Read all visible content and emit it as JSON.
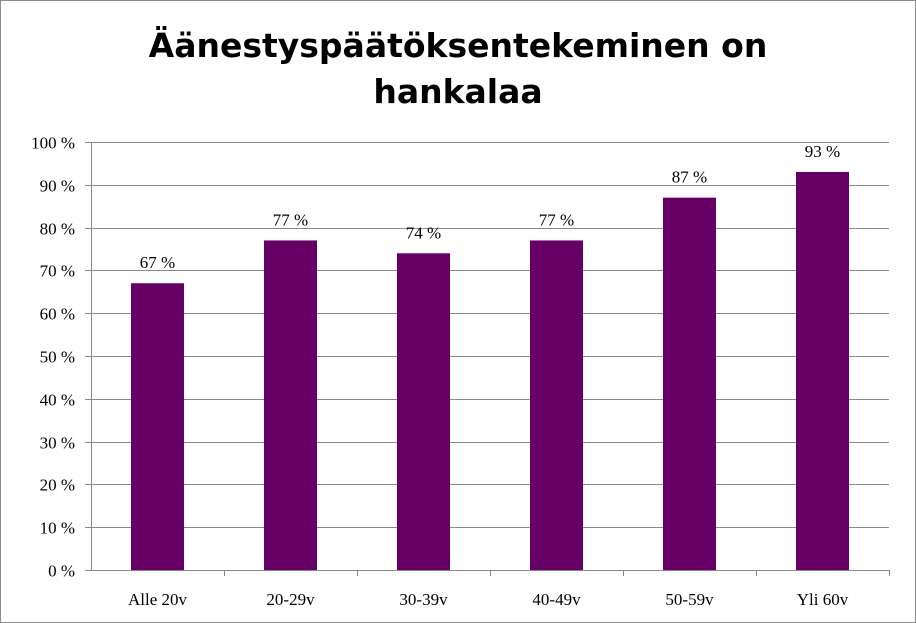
{
  "chart_data": {
    "type": "bar",
    "title_lines": [
      "Äänestyspäätöksentekeminen on",
      "hankalaa"
    ],
    "categories": [
      "Alle 20v",
      "20-29v",
      "30-39v",
      "40-49v",
      "50-59v",
      "Yli 60v"
    ],
    "values": [
      67,
      77,
      74,
      77,
      87,
      93
    ],
    "data_labels": [
      "67 %",
      "77 %",
      "74 %",
      "77 %",
      "87 %",
      "93 %"
    ],
    "y_ticks": [
      0,
      10,
      20,
      30,
      40,
      50,
      60,
      70,
      80,
      90,
      100
    ],
    "y_tick_labels": [
      "0 %",
      "10 %",
      "20 %",
      "30 %",
      "40 %",
      "50 %",
      "60 %",
      "70 %",
      "80 %",
      "90 %",
      "100 %"
    ],
    "ylim": [
      0,
      100
    ],
    "grid": true,
    "legend": "none",
    "bar_color": "#660066",
    "xlabel": "",
    "ylabel": ""
  }
}
